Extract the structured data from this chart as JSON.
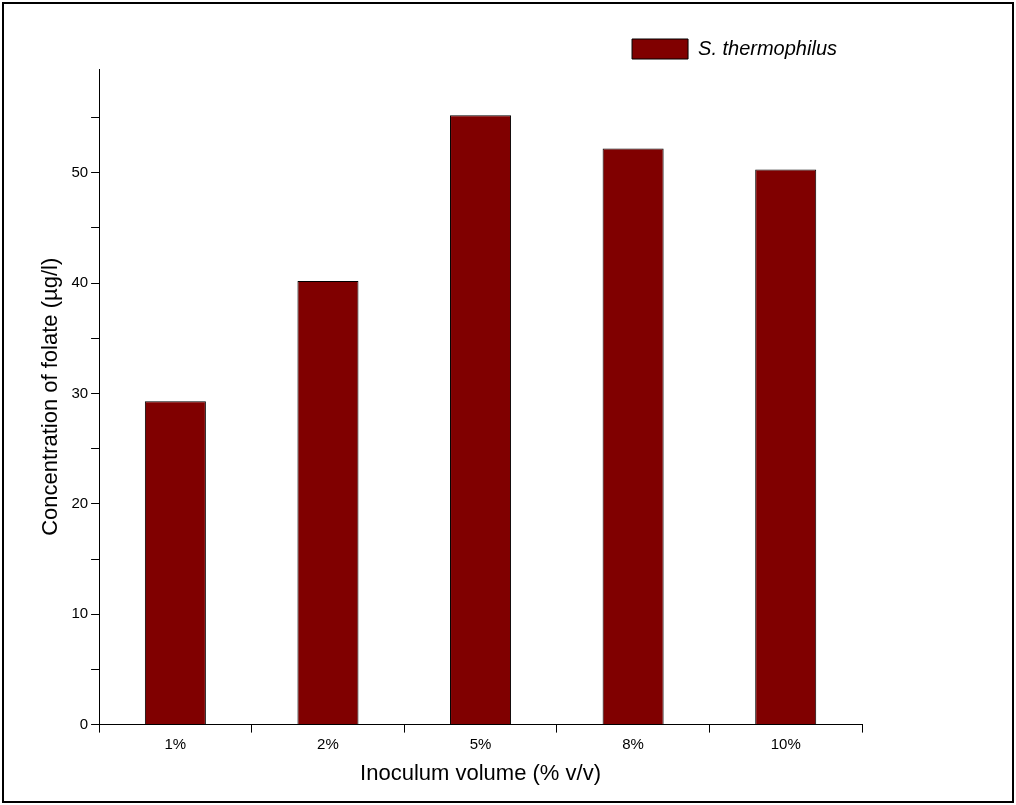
{
  "chart_data": {
    "type": "bar",
    "xlabel": "Inoculum volume (% v/v)",
    "ylabel": "Concentration of folate (µg/l)",
    "categories": [
      "1%",
      "2%",
      "5%",
      "8%",
      "10%"
    ],
    "series": [
      {
        "name": "S. thermophilus",
        "color": "#800000",
        "values": [
          29.3,
          40.2,
          55.2,
          52.2,
          50.3
        ]
      }
    ],
    "ylim": [
      0,
      59.4
    ],
    "yticks": [
      0,
      {
        "value": 5,
        "label": null
      },
      10,
      {
        "value": 15,
        "label": null
      },
      20,
      {
        "value": 25,
        "label": null
      },
      30,
      {
        "value": 35,
        "label": null
      },
      40,
      {
        "value": 45,
        "label": null
      },
      50,
      {
        "value": 55,
        "label": null
      }
    ],
    "grid": false,
    "legend": "top right"
  }
}
